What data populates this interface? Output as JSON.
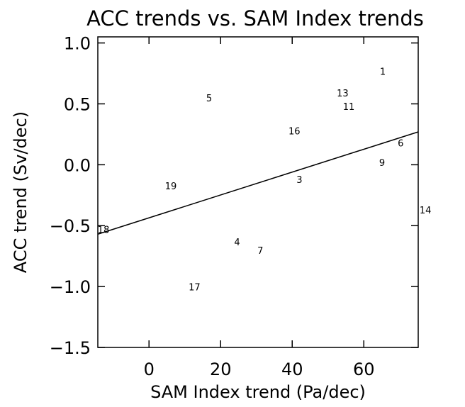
{
  "chart_data": {
    "type": "scatter",
    "title": "ACC trends vs. SAM Index trends",
    "xlabel": "SAM Index trend (Pa/dec)",
    "ylabel": "ACC trend (Sv/dec)",
    "x": [
      65.3,
      16.8,
      54.1,
      55.8,
      40.6,
      70.3,
      65.1,
      42.0,
      6.1,
      77.2,
      -12.7,
      24.6,
      31.1,
      12.7
    ],
    "values": [
      0.76,
      0.54,
      0.58,
      0.47,
      0.27,
      0.17,
      0.01,
      -0.13,
      -0.18,
      -0.38,
      -0.54,
      -0.64,
      -0.71,
      -1.01
    ],
    "labels": [
      "1",
      "5",
      "13",
      "11",
      "16",
      "6",
      "9",
      "3",
      "19",
      "14",
      "18",
      "4",
      "7",
      "17"
    ],
    "fit_line": {
      "x": [
        -14.3,
        75.2
      ],
      "values": [
        -0.57,
        0.27
      ]
    },
    "color": "#000000",
    "xlim": [
      -14.3,
      75.2
    ],
    "xticks": [
      0,
      20,
      40,
      60
    ],
    "ylim": [
      -1.5,
      1.05
    ],
    "yticks": [
      {
        "value": -1.5,
        "label": "−1.5"
      },
      {
        "value": -1,
        "label": "−1.0"
      },
      {
        "value": -0.5,
        "label": "−0.5"
      },
      {
        "value": 0,
        "label": "0.0"
      },
      {
        "value": 0.5,
        "label": "0.5"
      },
      {
        "value": 1,
        "label": "1.0"
      }
    ]
  }
}
